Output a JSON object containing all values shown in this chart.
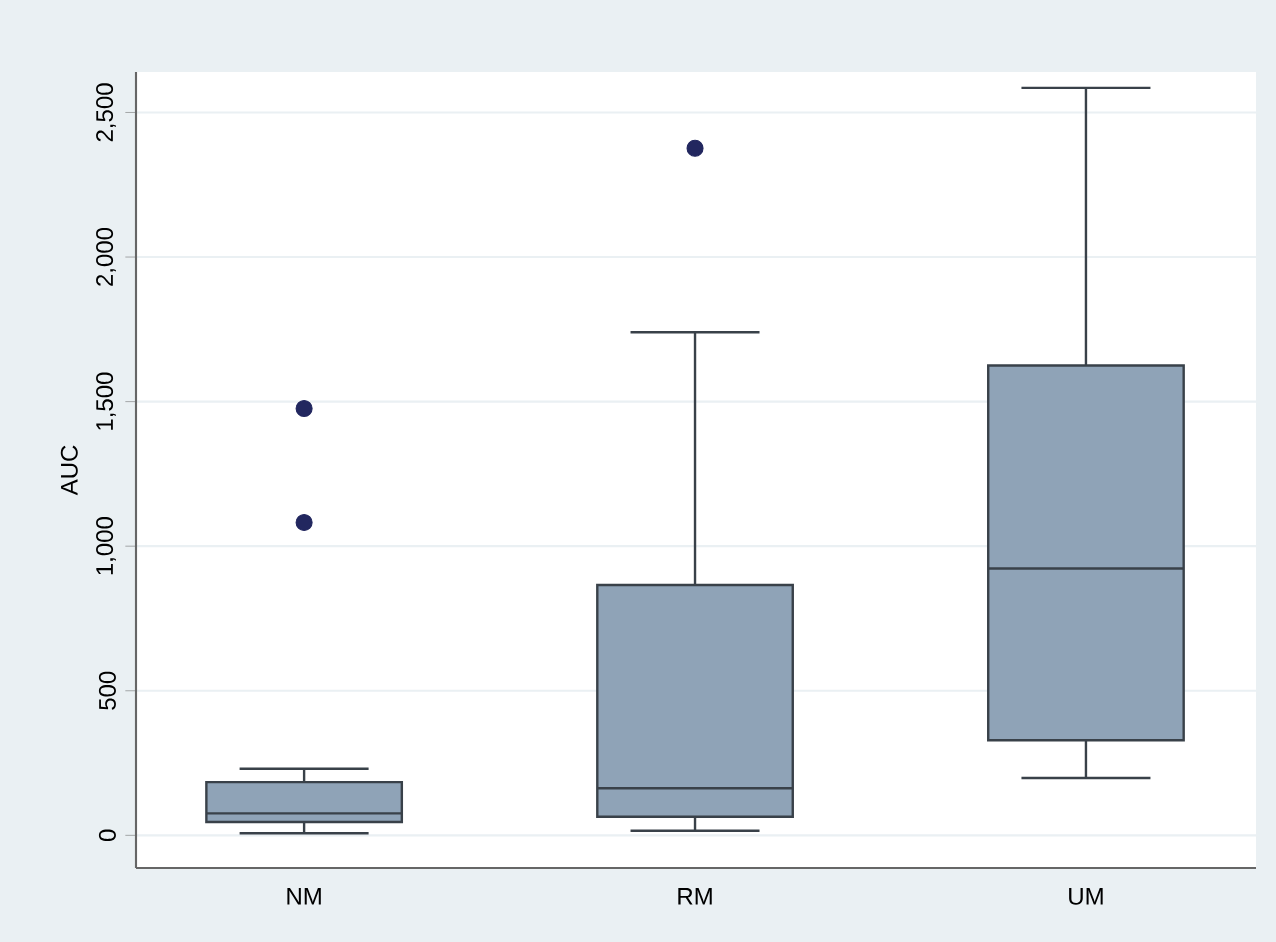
{
  "chart_data": {
    "type": "box",
    "categories": [
      "NM",
      "RM",
      "UM"
    ],
    "boxes": [
      {
        "low": 7,
        "q1": 46,
        "median": 76,
        "q3": 184,
        "high": 230,
        "outliers": [
          1082,
          1476
        ]
      },
      {
        "low": 16,
        "q1": 64,
        "median": 163,
        "q3": 866,
        "high": 1740,
        "outliers": [
          2376
        ]
      },
      {
        "low": 198,
        "q1": 329,
        "median": 923,
        "q3": 1625,
        "high": 2585
      }
    ],
    "color": "#8fa3b7",
    "ylabel": "AUC",
    "ylim": [
      -113,
      2640
    ],
    "yticks": [
      0,
      500,
      {
        "value": 1000,
        "label": "1,000"
      },
      {
        "value": 1500,
        "label": "1,500"
      },
      {
        "value": 2000,
        "label": "2,000"
      },
      {
        "value": 2500,
        "label": "2,500"
      }
    ],
    "grid": "y",
    "marker": "circle"
  }
}
